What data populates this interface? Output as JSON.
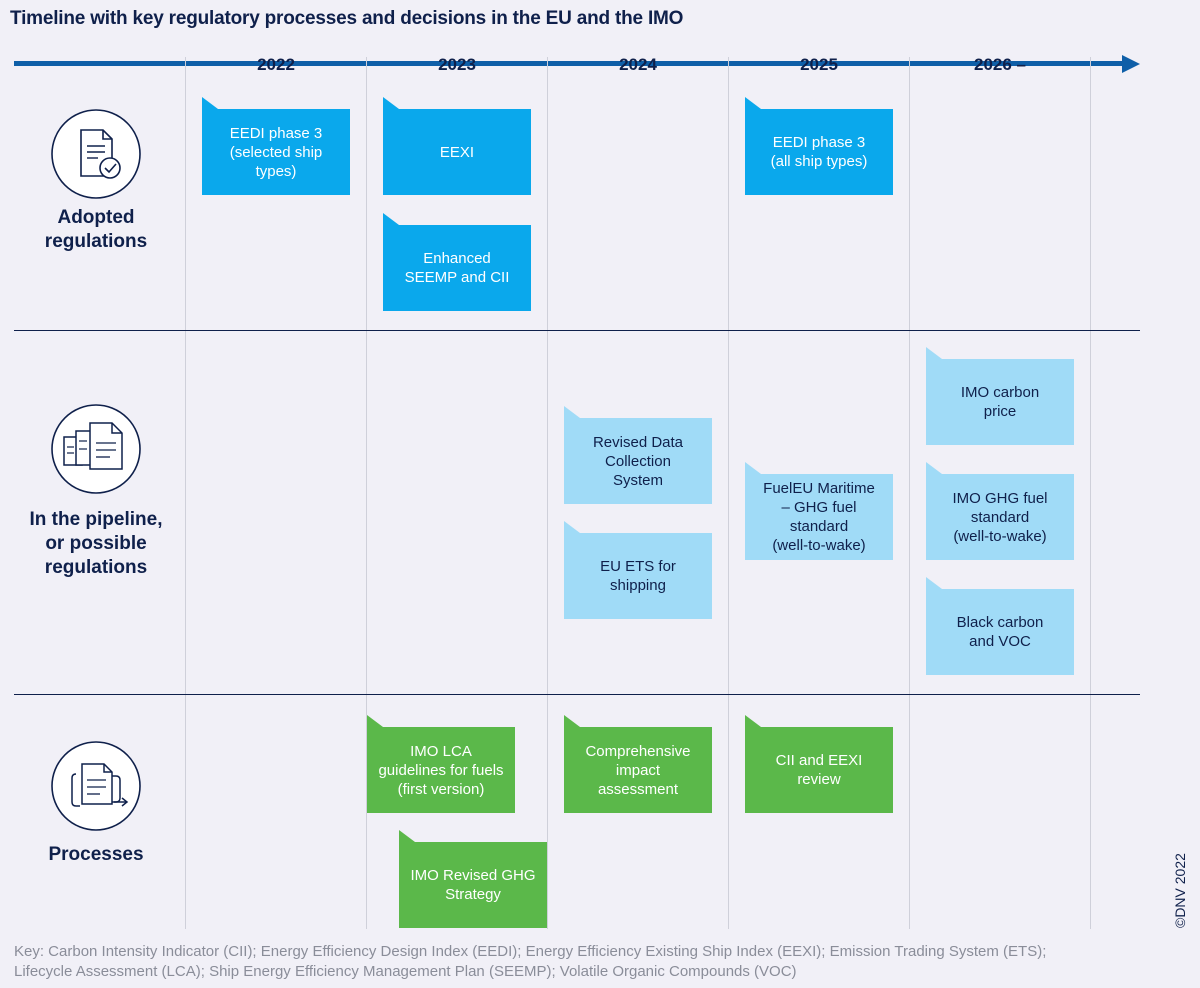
{
  "title": "Timeline with key regulatory processes and decisions in the EU and the IMO",
  "years": [
    "2022",
    "2023",
    "2024",
    "2025",
    "2026 –"
  ],
  "rows": {
    "adopted": {
      "label_lines": [
        "Adopted",
        "regulations"
      ],
      "icon": "document-check-icon"
    },
    "pipeline": {
      "label_lines": [
        "In the pipeline,",
        "or possible",
        "regulations"
      ],
      "icon": "document-stack-icon"
    },
    "processes": {
      "label_lines": [
        "Processes"
      ],
      "icon": "document-flow-icon"
    }
  },
  "cards": {
    "eedi_selected": {
      "lines": [
        "EEDI phase 3",
        "(selected ship",
        "types)"
      ]
    },
    "eexi": {
      "lines": [
        "EEXI"
      ]
    },
    "seemp_cii": {
      "lines": [
        "Enhanced",
        "SEEMP and CII"
      ]
    },
    "eedi_all": {
      "lines": [
        "EEDI phase 3",
        "(all ship types)"
      ]
    },
    "revised_dcs": {
      "lines": [
        "Revised Data",
        "Collection",
        "System"
      ]
    },
    "eu_ets": {
      "lines": [
        "EU ETS for",
        "shipping"
      ]
    },
    "fueleu": {
      "lines": [
        "FuelEU Maritime",
        "– GHG fuel",
        "standard",
        "(well-to-wake)"
      ]
    },
    "imo_carbon_price": {
      "lines": [
        "IMO carbon",
        "price"
      ]
    },
    "imo_ghg_fuel": {
      "lines": [
        "IMO GHG fuel",
        "standard",
        "(well-to-wake)"
      ]
    },
    "black_carbon": {
      "lines": [
        "Black carbon",
        "and VOC"
      ]
    },
    "imo_lca": {
      "lines": [
        "IMO LCA",
        "guidelines for fuels",
        "(first version)"
      ]
    },
    "impact_assessment": {
      "lines": [
        "Comprehensive",
        "impact",
        "assessment"
      ]
    },
    "cii_eexi_review": {
      "lines": [
        "CII and EEXI",
        "review"
      ]
    },
    "imo_ghg_strategy": {
      "lines": [
        "IMO Revised GHG",
        "Strategy"
      ]
    }
  },
  "key_lines": [
    "Key: Carbon Intensity Indicator (CII); Energy Efficiency Design Index (EEDI); Energy Efficiency Existing Ship Index (EEXI); Emission Trading System (ETS);",
    "Lifecycle Assessment (LCA); Ship Energy Efficiency Management Plan (SEEMP); Volatile Organic Compounds (VOC)"
  ],
  "copyright": "©DNV 2022",
  "colors": {
    "adopted": "#0aa8ec",
    "pipeline": "#a0dbf7",
    "process": "#5bb84a",
    "navy": "#0f204b",
    "axis": "#0f5fa8"
  }
}
